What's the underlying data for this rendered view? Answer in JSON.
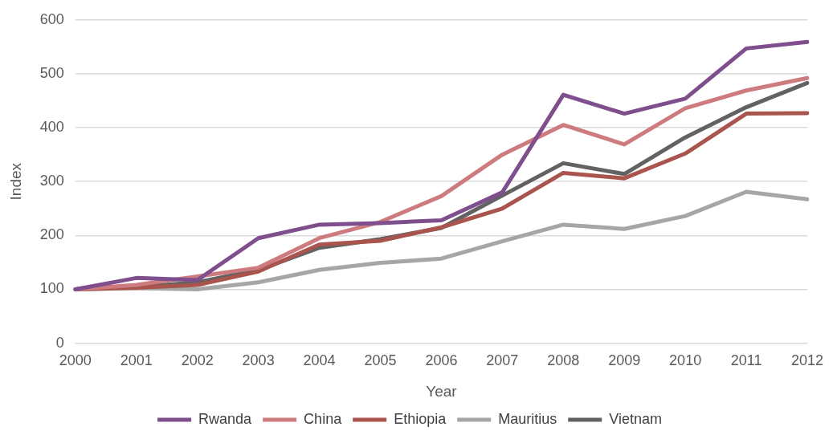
{
  "chart_data": {
    "type": "line",
    "xlabel": "Year",
    "ylabel": "Index",
    "categories": [
      "2000",
      "2001",
      "2002",
      "2003",
      "2004",
      "2005",
      "2006",
      "2007",
      "2008",
      "2009",
      "2010",
      "2011",
      "2012"
    ],
    "series": [
      {
        "name": "Rwanda",
        "color": "#7e4f8c",
        "values": [
          100,
          121,
          117,
          195,
          220,
          223,
          228,
          280,
          461,
          426,
          454,
          547,
          559
        ]
      },
      {
        "name": "China",
        "color": "#cd7b7f",
        "values": [
          100,
          108,
          124,
          140,
          195,
          225,
          273,
          350,
          405,
          369,
          436,
          469,
          492
        ]
      },
      {
        "name": "Ethiopia",
        "color": "#a9544c",
        "values": [
          100,
          103,
          108,
          133,
          183,
          190,
          215,
          250,
          316,
          306,
          352,
          426,
          427
        ]
      },
      {
        "name": "Mauritius",
        "color": "#a6a6a6",
        "values": [
          100,
          102,
          100,
          113,
          136,
          149,
          157,
          189,
          220,
          212,
          236,
          281,
          267
        ]
      },
      {
        "name": "Vietnam",
        "color": "#626262",
        "values": [
          100,
          104,
          113,
          136,
          177,
          193,
          214,
          274,
          334,
          314,
          382,
          438,
          483
        ]
      }
    ],
    "ylim": [
      0,
      600
    ],
    "yticks": [
      0,
      100,
      200,
      300,
      400,
      500,
      600
    ],
    "grid": "y",
    "legend": "bottom",
    "marker": "none",
    "line_style": "solid"
  }
}
